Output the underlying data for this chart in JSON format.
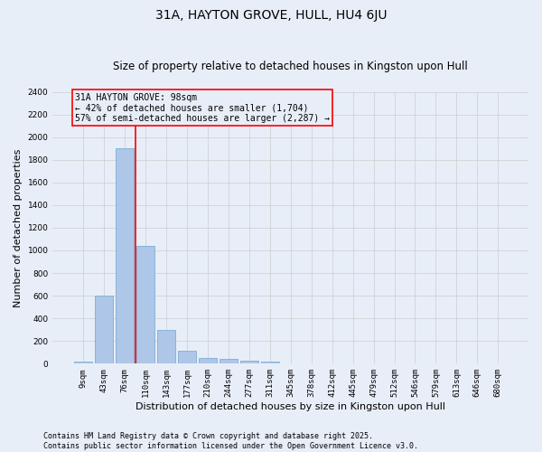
{
  "title": "31A, HAYTON GROVE, HULL, HU4 6JU",
  "subtitle": "Size of property relative to detached houses in Kingston upon Hull",
  "xlabel": "Distribution of detached houses by size in Kingston upon Hull",
  "ylabel": "Number of detached properties",
  "footer": "Contains HM Land Registry data © Crown copyright and database right 2025.\nContains public sector information licensed under the Open Government Licence v3.0.",
  "bar_labels": [
    "9sqm",
    "43sqm",
    "76sqm",
    "110sqm",
    "143sqm",
    "177sqm",
    "210sqm",
    "244sqm",
    "277sqm",
    "311sqm",
    "345sqm",
    "378sqm",
    "412sqm",
    "445sqm",
    "479sqm",
    "512sqm",
    "546sqm",
    "579sqm",
    "613sqm",
    "646sqm",
    "680sqm"
  ],
  "bar_values": [
    20,
    600,
    1900,
    1040,
    295,
    115,
    48,
    40,
    28,
    20,
    0,
    0,
    0,
    0,
    0,
    0,
    0,
    0,
    0,
    0,
    0
  ],
  "ylim": [
    0,
    2400
  ],
  "yticks": [
    0,
    200,
    400,
    600,
    800,
    1000,
    1200,
    1400,
    1600,
    1800,
    2000,
    2200,
    2400
  ],
  "bar_color": "#aec6e8",
  "bar_edge_color": "#7aafd4",
  "grid_color": "#cccccc",
  "background_color": "#e8eef8",
  "vline_color": "red",
  "vline_pos": 2.5,
  "annotation_text": "31A HAYTON GROVE: 98sqm\n← 42% of detached houses are smaller (1,704)\n57% of semi-detached houses are larger (2,287) →",
  "annotation_box_color": "red",
  "title_fontsize": 10,
  "subtitle_fontsize": 8.5,
  "tick_fontsize": 6.5,
  "ylabel_fontsize": 8,
  "xlabel_fontsize": 8,
  "footer_fontsize": 6,
  "annotation_fontsize": 7
}
